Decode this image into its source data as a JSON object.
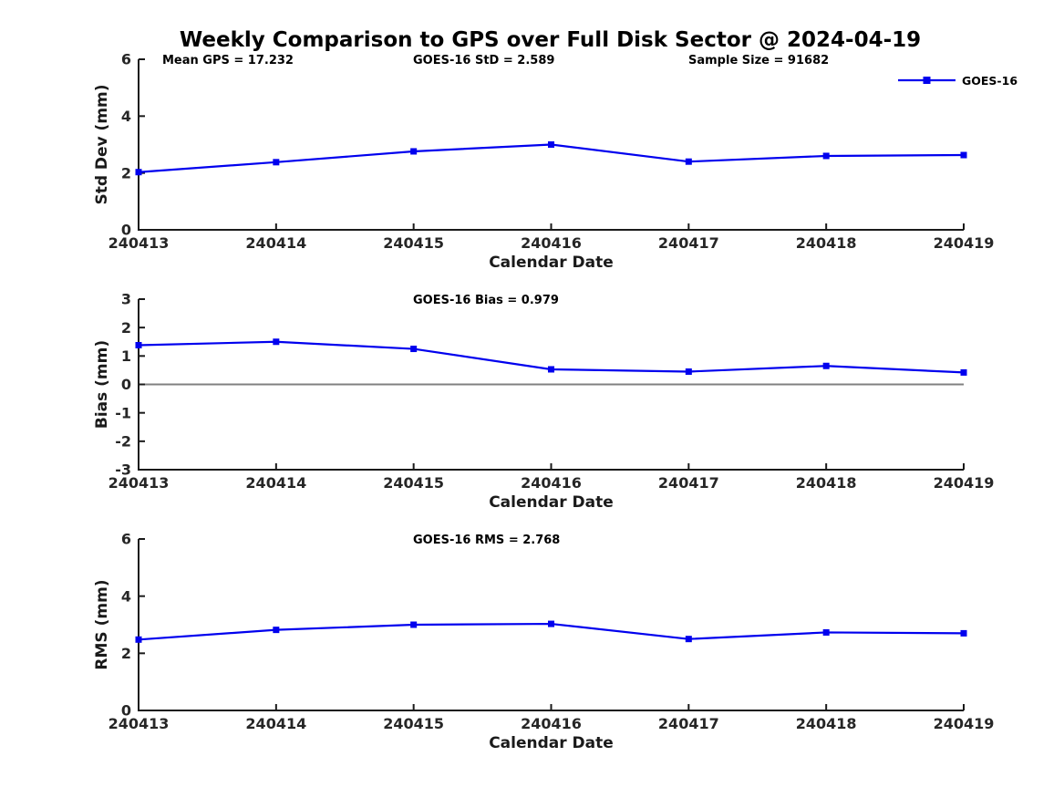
{
  "title": "Weekly Comparison to GPS over Full Disk Sector @ 2024-04-19",
  "colors": {
    "series": "#0000EE",
    "zero_line": "#808080",
    "axis": "#1a1a1a"
  },
  "legend": {
    "label": "GOES-16",
    "position": "top-right",
    "marker": "filled-square"
  },
  "chart_data": [
    {
      "type": "line",
      "panel": "std-dev",
      "title": "",
      "categories": [
        "240413",
        "240414",
        "240415",
        "240416",
        "240417",
        "240418",
        "240419"
      ],
      "series": [
        {
          "name": "GOES-16",
          "values": [
            2.03,
            2.38,
            2.76,
            3.0,
            2.4,
            2.6,
            2.63
          ]
        }
      ],
      "xlabel": "Calendar Date",
      "ylabel": "Std Dev (mm)",
      "ylim": [
        0,
        6
      ],
      "yticks": [
        0,
        2,
        4,
        6
      ],
      "grid": false,
      "annotations": [
        "Mean GPS = 17.232",
        "GOES-16 StD = 2.589",
        "Sample Size = 91682"
      ]
    },
    {
      "type": "line",
      "panel": "bias",
      "title": "",
      "categories": [
        "240413",
        "240414",
        "240415",
        "240416",
        "240417",
        "240418",
        "240419"
      ],
      "series": [
        {
          "name": "GOES-16",
          "values": [
            1.38,
            1.5,
            1.25,
            0.53,
            0.45,
            0.65,
            0.42
          ]
        }
      ],
      "xlabel": "Calendar Date",
      "ylabel": "Bias (mm)",
      "ylim": [
        -3,
        3
      ],
      "yticks": [
        -3,
        -2,
        -1,
        0,
        1,
        2,
        3
      ],
      "grid": false,
      "zero_line": true,
      "annotations": [
        "GOES-16 Bias  = 0.979"
      ]
    },
    {
      "type": "line",
      "panel": "rms",
      "title": "",
      "categories": [
        "240413",
        "240414",
        "240415",
        "240416",
        "240417",
        "240418",
        "240419"
      ],
      "series": [
        {
          "name": "GOES-16",
          "values": [
            2.48,
            2.82,
            3.0,
            3.03,
            2.5,
            2.73,
            2.7
          ]
        }
      ],
      "xlabel": "Calendar Date",
      "ylabel": "RMS (mm)",
      "ylim": [
        0,
        6
      ],
      "yticks": [
        0,
        2,
        4,
        6
      ],
      "grid": false,
      "annotations": [
        "GOES-16 RMS = 2.768"
      ]
    }
  ]
}
